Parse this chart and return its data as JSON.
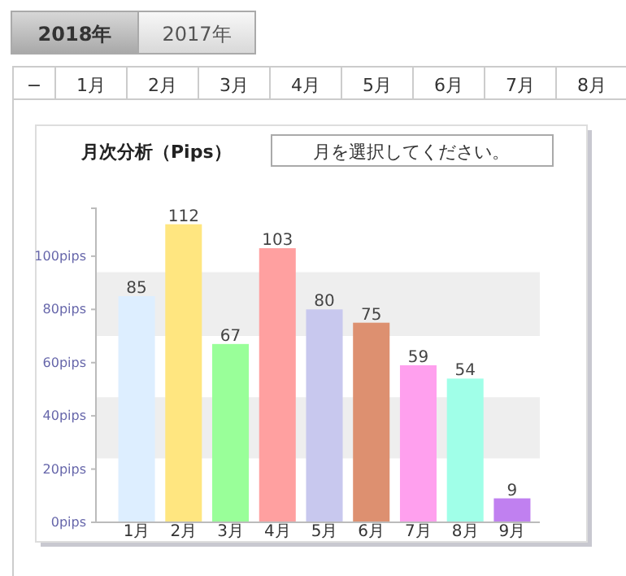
{
  "chart_data": {
    "type": "bar",
    "title": "月次分析（Pips）",
    "categories": [
      "1月",
      "2月",
      "3月",
      "4月",
      "5月",
      "6月",
      "7月",
      "8月",
      "9月"
    ],
    "values": [
      85,
      112,
      67,
      103,
      80,
      75,
      59,
      54,
      9
    ],
    "colors": [
      "#ddeeff",
      "#ffe680",
      "#99ff99",
      "#ffa0a0",
      "#c8c8ee",
      "#dd9070",
      "#ffa0ee",
      "#a0ffe8",
      "#c080f0"
    ],
    "ylim": [
      0,
      118
    ],
    "yticks": [
      {
        "value": 0,
        "label": "0pips"
      },
      {
        "value": 20,
        "label": "20pips"
      },
      {
        "value": 40,
        "label": "40pips"
      },
      {
        "value": 60,
        "label": "60pips"
      },
      {
        "value": 80,
        "label": "80pips"
      },
      {
        "value": 100,
        "label": "100pips"
      }
    ],
    "bands": [
      {
        "axis": "y",
        "from": 24,
        "to": 47,
        "color": "#eeeeee"
      },
      {
        "axis": "y",
        "from": 70,
        "to": 94,
        "color": "#eeeeee"
      }
    ],
    "data_labels": true,
    "grid": false,
    "annotations": [
      "2018年",
      "2017年",
      "−",
      "1月",
      "2月",
      "3月",
      "4月",
      "5月",
      "6月",
      "7月",
      "8月",
      "月を選択してください。"
    ]
  }
}
